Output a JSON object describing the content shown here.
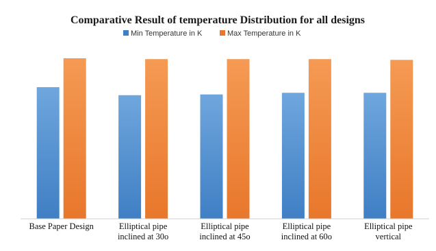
{
  "colors": {
    "min_top": "#6fa6dd",
    "min_bottom": "#3f7fc4",
    "max_top": "#f59a54",
    "max_bottom": "#e8772b",
    "axis": "#cfcfcf"
  },
  "chart_data": {
    "type": "bar",
    "title": "Comparative Result of temperature Distribution for all designs",
    "xlabel": "",
    "ylabel": "",
    "legend_position": "top",
    "grid": false,
    "categories": [
      [
        "Base Paper Design"
      ],
      [
        "Elliptical pipe",
        "inclined at 30o"
      ],
      [
        "Elliptical pipe",
        "inclined at 45o"
      ],
      [
        "Elliptical pipe",
        "inclined at 60o"
      ],
      [
        "Elliptical pipe",
        "vertical"
      ]
    ],
    "series": [
      {
        "name": "Min Temperature in K",
        "values": [
          0.82,
          0.77,
          0.775,
          0.785,
          0.785
        ]
      },
      {
        "name": "Max Temperature in K",
        "values": [
          1.0,
          0.995,
          0.995,
          0.995,
          0.99
        ]
      }
    ],
    "ylim": [
      0,
      1
    ]
  }
}
